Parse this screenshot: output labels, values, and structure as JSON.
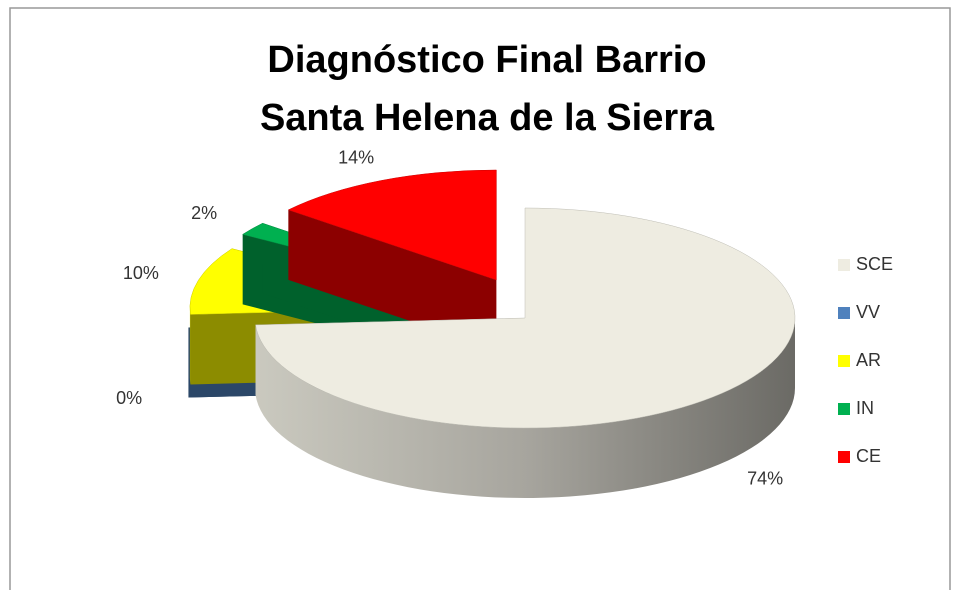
{
  "chart_data": {
    "type": "pie3d",
    "title": [
      "Diagnóstico Final Barrio",
      "Santa Helena de la Sierra"
    ],
    "categories": [
      "SCE",
      "VV",
      "AR",
      "IN",
      "CE"
    ],
    "values": [
      74,
      0,
      10,
      2,
      14
    ],
    "value_labels": [
      "74%",
      "0%",
      "10%",
      "2%",
      "14%"
    ],
    "colors": [
      "#eeece1",
      "#4f81bd",
      "#ffff00",
      "#00b050",
      "#ff0000"
    ],
    "legend": "right"
  }
}
